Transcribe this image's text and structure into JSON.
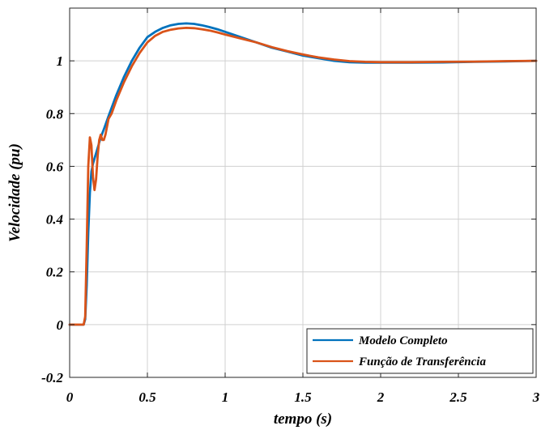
{
  "chart_data": {
    "type": "line",
    "title": "",
    "xlabel": "tempo (s)",
    "ylabel": "Velocidade (pu)",
    "xlim": [
      0,
      3
    ],
    "ylim": [
      -0.2,
      1.2
    ],
    "xticks": [
      0,
      0.5,
      1,
      1.5,
      2,
      2.5,
      3
    ],
    "xtick_labels": [
      "0",
      "0.5",
      "1",
      "1.5",
      "2",
      "2.5",
      "3"
    ],
    "yticks": [
      -0.2,
      0,
      0.2,
      0.4,
      0.6,
      0.8,
      1
    ],
    "ytick_labels": [
      "-0.2",
      "0",
      "0.2",
      "0.4",
      "0.6",
      "0.8",
      "1"
    ],
    "grid": true,
    "legend_position": "bottom-right",
    "series": [
      {
        "name": "Modelo Completo",
        "color": "#0072BD",
        "x": [
          0,
          0.09,
          0.1,
          0.11,
          0.12,
          0.13,
          0.14,
          0.15,
          0.16,
          0.18,
          0.2,
          0.22,
          0.25,
          0.3,
          0.35,
          0.4,
          0.45,
          0.5,
          0.55,
          0.6,
          0.65,
          0.7,
          0.75,
          0.8,
          0.85,
          0.9,
          0.95,
          1.0,
          1.1,
          1.2,
          1.3,
          1.4,
          1.5,
          1.6,
          1.7,
          1.8,
          1.9,
          2.0,
          2.2,
          2.4,
          2.6,
          2.8,
          3.0
        ],
        "y": [
          0,
          0,
          0.02,
          0.15,
          0.35,
          0.5,
          0.58,
          0.61,
          0.63,
          0.67,
          0.71,
          0.74,
          0.79,
          0.87,
          0.94,
          1.0,
          1.05,
          1.09,
          1.11,
          1.125,
          1.135,
          1.14,
          1.142,
          1.14,
          1.135,
          1.128,
          1.12,
          1.11,
          1.09,
          1.07,
          1.05,
          1.035,
          1.02,
          1.01,
          1.0,
          0.995,
          0.993,
          0.993,
          0.993,
          0.994,
          0.996,
          0.998,
          1.0
        ]
      },
      {
        "name": "Função de Transferência",
        "color": "#D95319",
        "x": [
          0,
          0.09,
          0.1,
          0.11,
          0.12,
          0.13,
          0.14,
          0.15,
          0.16,
          0.17,
          0.18,
          0.19,
          0.2,
          0.21,
          0.22,
          0.23,
          0.24,
          0.25,
          0.27,
          0.3,
          0.35,
          0.4,
          0.45,
          0.5,
          0.55,
          0.6,
          0.65,
          0.7,
          0.75,
          0.8,
          0.85,
          0.9,
          0.95,
          1.0,
          1.1,
          1.2,
          1.3,
          1.4,
          1.5,
          1.6,
          1.7,
          1.8,
          1.9,
          2.0,
          2.2,
          2.4,
          2.6,
          2.8,
          3.0
        ],
        "y": [
          0,
          0,
          0.03,
          0.3,
          0.6,
          0.71,
          0.68,
          0.56,
          0.51,
          0.55,
          0.64,
          0.7,
          0.72,
          0.7,
          0.7,
          0.72,
          0.75,
          0.78,
          0.8,
          0.85,
          0.92,
          0.98,
          1.03,
          1.07,
          1.095,
          1.11,
          1.118,
          1.123,
          1.125,
          1.124,
          1.12,
          1.115,
          1.108,
          1.1,
          1.085,
          1.07,
          1.052,
          1.037,
          1.024,
          1.013,
          1.005,
          0.999,
          0.996,
          0.995,
          0.995,
          0.996,
          0.997,
          0.999,
          1.0
        ]
      }
    ]
  }
}
